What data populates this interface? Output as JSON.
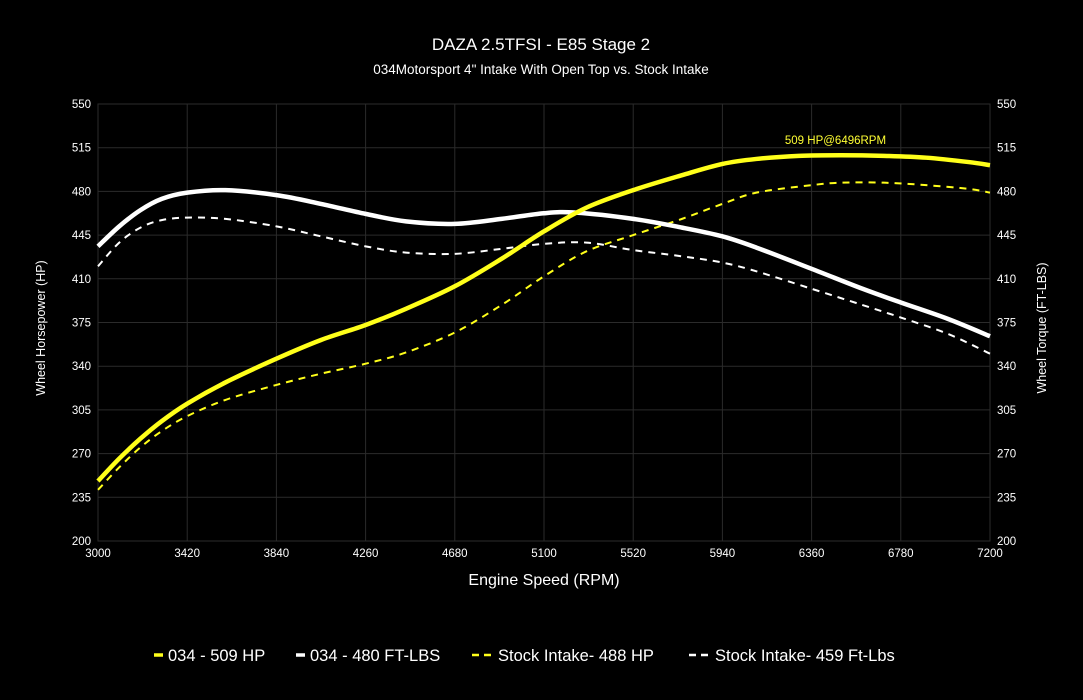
{
  "chart_data": {
    "type": "line",
    "title": "DAZA 2.5TFSI - E85 Stage 2",
    "subtitle": "034Motorsport 4\" Intake With Open Top vs. Stock Intake",
    "xlabel": "Engine Speed (RPM)",
    "ylabel": "Wheel Horsepower (HP)",
    "ylabel_right": "Wheel Torque (FT-LBS)",
    "xlim": [
      3000,
      7200
    ],
    "ylim": [
      200,
      550
    ],
    "x_ticks": [
      "3000",
      "3420",
      "3840",
      "4260",
      "4680",
      "5100",
      "5520",
      "5940",
      "6360",
      "6780",
      "7200"
    ],
    "y_ticks": [
      "200",
      "235",
      "270",
      "305",
      "340",
      "375",
      "410",
      "445",
      "480",
      "515",
      "550"
    ],
    "grid": true,
    "legend_position": "bottom",
    "annotation": {
      "text": "509 HP@6496RPM",
      "x": 6496,
      "y": 509
    },
    "series": [
      {
        "name": "034 - 509 HP",
        "color": "#ffff1a",
        "style": "solid",
        "x": [
          3000,
          3100,
          3200,
          3300,
          3420,
          3600,
          3840,
          4050,
          4260,
          4450,
          4680,
          4900,
          5100,
          5300,
          5520,
          5750,
          5940,
          6100,
          6300,
          6496,
          6700,
          6900,
          7100,
          7200
        ],
        "y": [
          248,
          266,
          282,
          296,
          310,
          327,
          346,
          361,
          373,
          386,
          404,
          426,
          448,
          467,
          481,
          493,
          502,
          506,
          508.5,
          509,
          508.5,
          507,
          503.5,
          501
        ]
      },
      {
        "name": "034 - 480 FT-LBS",
        "color": "#ffffff",
        "style": "solid",
        "x": [
          3000,
          3100,
          3200,
          3300,
          3420,
          3600,
          3840,
          4050,
          4260,
          4450,
          4680,
          4900,
          5100,
          5250,
          5520,
          5750,
          5940,
          6100,
          6360,
          6600,
          6780,
          7000,
          7200
        ],
        "y": [
          436,
          452,
          465,
          474,
          479,
          481,
          477,
          470,
          462,
          456,
          454,
          458,
          462.5,
          463,
          458,
          451,
          444,
          435,
          418,
          402,
          391,
          378,
          364
        ]
      },
      {
        "name": "Stock Intake- 488 HP",
        "color": "#ffff1a",
        "style": "dashed",
        "x": [
          3000,
          3100,
          3200,
          3300,
          3420,
          3600,
          3840,
          4050,
          4260,
          4450,
          4680,
          4900,
          5100,
          5300,
          5520,
          5750,
          5940,
          6100,
          6360,
          6500,
          6700,
          6900,
          7100,
          7200
        ],
        "y": [
          241,
          259,
          275,
          288,
          300,
          313,
          325,
          334,
          342,
          351,
          367,
          389,
          412,
          432,
          445,
          458,
          470,
          479,
          485,
          487,
          487,
          485,
          482,
          479
        ]
      },
      {
        "name": "Stock Intake- 459 Ft-Lbs",
        "color": "#ffffff",
        "style": "dashed",
        "x": [
          3000,
          3100,
          3200,
          3300,
          3420,
          3600,
          3840,
          4050,
          4260,
          4450,
          4680,
          4900,
          5100,
          5300,
          5520,
          5750,
          5940,
          6100,
          6360,
          6600,
          6780,
          7000,
          7200
        ],
        "y": [
          420,
          439,
          451,
          457,
          459,
          458,
          452,
          444,
          436,
          431,
          430,
          434,
          438,
          439,
          433,
          428,
          423,
          416,
          402,
          389,
          379,
          366,
          350
        ]
      }
    ]
  }
}
